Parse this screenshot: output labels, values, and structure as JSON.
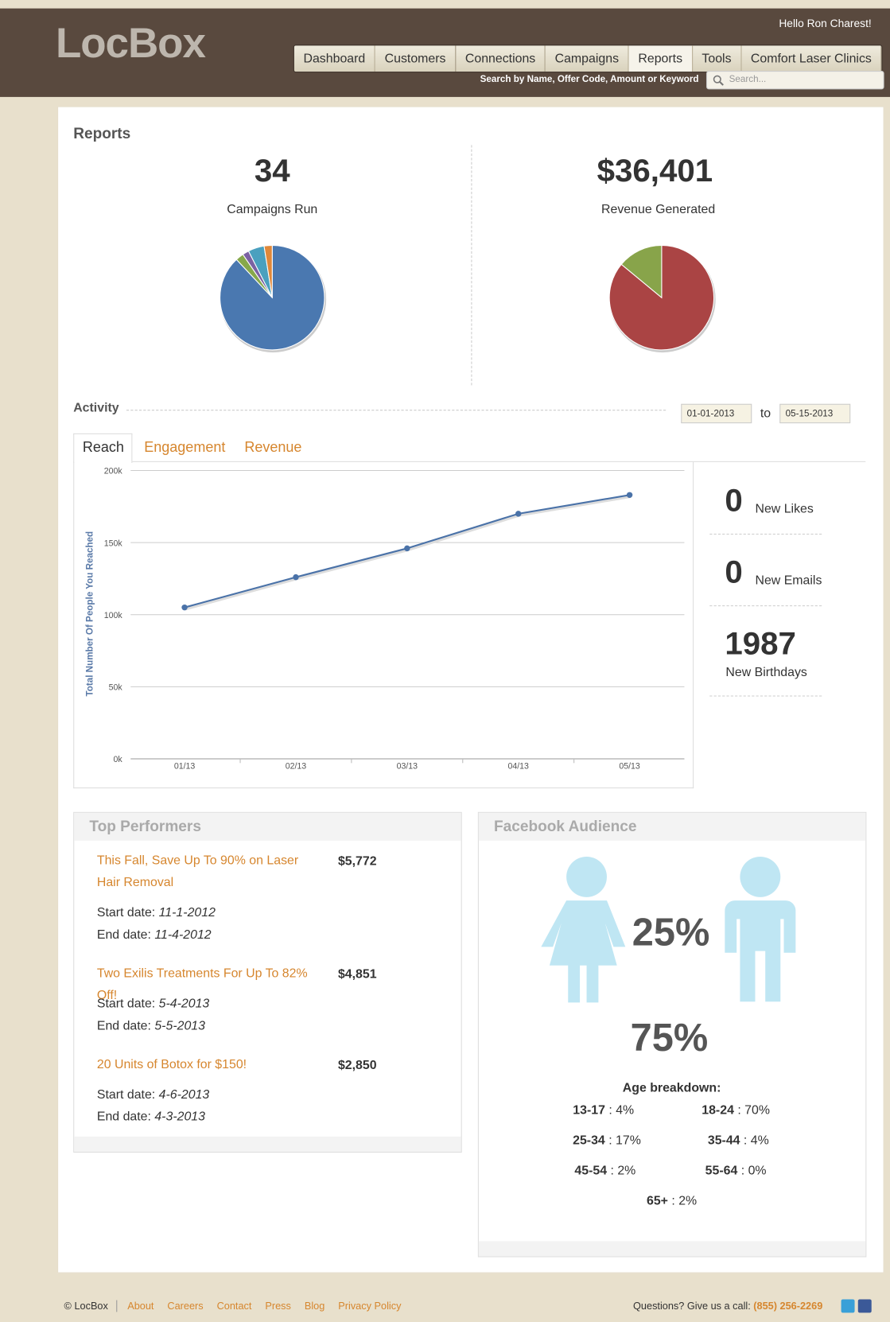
{
  "header": {
    "logo": "LocBox",
    "greeting": "Hello Ron Charest!",
    "nav": [
      "Dashboard",
      "Customers",
      "Connections",
      "Campaigns",
      "Reports",
      "Tools",
      "Comfort Laser Clinics"
    ],
    "search_label": "Search by Name, Offer Code, Amount or Keyword",
    "search_placeholder": "Search..."
  },
  "reports": {
    "title": "Reports",
    "campaigns": {
      "value": "34",
      "label": "Campaigns Run"
    },
    "revenue": {
      "value": "$36,401",
      "label": "Revenue Generated"
    }
  },
  "activity": {
    "title": "Activity",
    "from": "01-01-2013",
    "to_label": "to",
    "to": "05-15-2013",
    "tabs": [
      "Reach",
      "Engagement",
      "Revenue"
    ]
  },
  "chart_data": [
    {
      "type": "pie",
      "values": [
        88,
        2.5,
        2,
        5,
        2.5
      ],
      "colors": [
        "#4a78b0",
        "#86a84b",
        "#7b62a3",
        "#4aa0bf",
        "#e0883a"
      ]
    },
    {
      "type": "pie",
      "values": [
        86,
        14
      ],
      "colors": [
        "#aa4444",
        "#88a44a"
      ]
    },
    {
      "type": "line",
      "y_label": "Total Number Of People You Reached",
      "categories": [
        "01/13",
        "02/13",
        "03/13",
        "04/13",
        "05/13"
      ],
      "values": [
        105000,
        126000,
        146000,
        170000,
        183000
      ],
      "color": "#4a72a8",
      "ylim": [
        0,
        200000
      ],
      "yticks": [
        {
          "value": 0,
          "label": "0k"
        },
        {
          "value": 50000,
          "label": "50k"
        },
        {
          "value": 100000,
          "label": "100k"
        },
        {
          "value": 150000,
          "label": "150k"
        },
        {
          "value": 200000,
          "label": "200k"
        }
      ],
      "grid": true
    }
  ],
  "stats": [
    {
      "value": "0",
      "label": "New Likes"
    },
    {
      "value": "0",
      "label": "New Emails"
    },
    {
      "value": "1987",
      "label": "New Birthdays"
    }
  ],
  "top_performers": {
    "title": "Top Performers",
    "items": [
      {
        "name": "This Fall, Save Up To 90% on Laser Hair Removal",
        "amount": "$5,772",
        "start_label": "Start date:",
        "start": "11-1-2012",
        "end_label": "End date:",
        "end": "11-4-2012"
      },
      {
        "name": "Two Exilis Treatments For Up To 82% Off!",
        "amount": "$4,851",
        "start_label": "Start date:",
        "start": "5-4-2013",
        "end_label": "End date:",
        "end": "5-5-2013"
      },
      {
        "name": "20 Units of Botox for $150!",
        "amount": "$2,850",
        "start_label": "Start date:",
        "start": "4-6-2013",
        "end_label": "End date:",
        "end": "4-3-2013"
      }
    ]
  },
  "facebook": {
    "title": "Facebook Audience",
    "female": "25%",
    "male": "75%",
    "age_title": "Age breakdown:",
    "ages": [
      {
        "label": "13-17",
        "rest": " : 4%"
      },
      {
        "label": "18-24",
        "rest": " : 70%"
      },
      {
        "label": "25-34",
        "rest": " : 17%"
      },
      {
        "label": "35-44",
        "rest": " : 4%"
      },
      {
        "label": "45-54",
        "rest": " : 2%"
      },
      {
        "label": "55-64",
        "rest": " : 0%"
      },
      {
        "label": "65+",
        "rest": " : 2%"
      }
    ]
  },
  "footer": {
    "copyright": "© LocBox",
    "links": [
      "About",
      "Careers",
      "Contact",
      "Press",
      "Blog",
      "Privacy Policy"
    ],
    "question": "Questions? Give us a call:",
    "phone": "(855) 256-2269"
  }
}
